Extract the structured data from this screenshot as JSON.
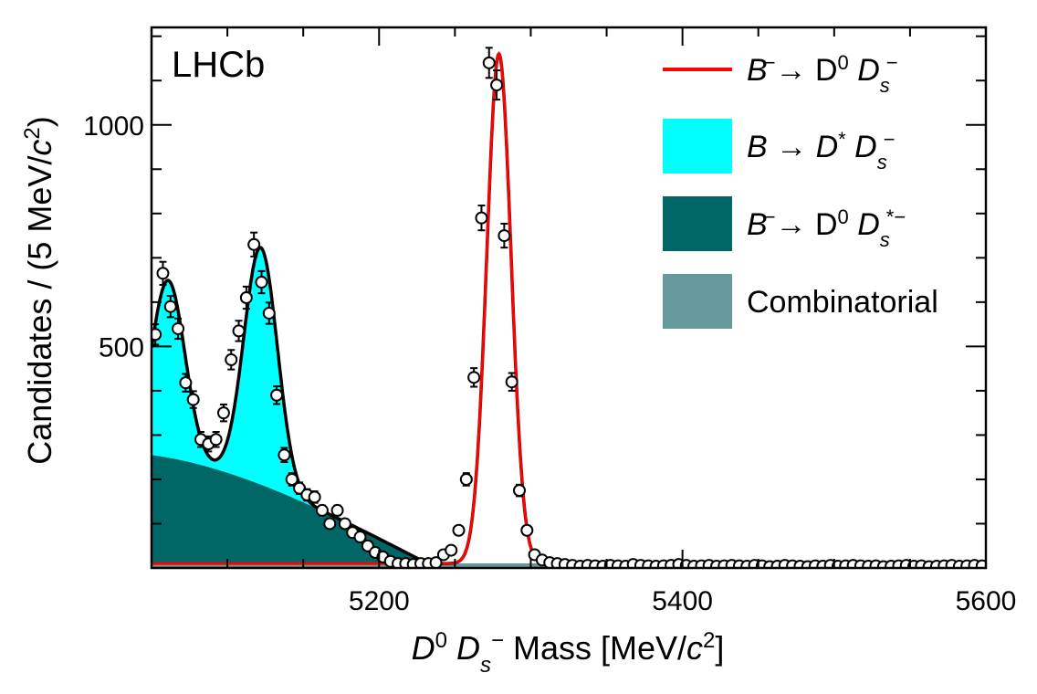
{
  "chart_data": {
    "type": "line",
    "annotation": "LHCb",
    "xlabel": {
      "pre": "D",
      "sup1": "0",
      "mid": " D",
      "sub": "s",
      "sup2": "−",
      "post": " Mass [MeV/",
      "c": "c",
      "sup3": "2",
      "end": "]"
    },
    "ylabel": {
      "pre": "Candidates / (5 MeV/",
      "c": "c",
      "sup": "2",
      "end": ")"
    },
    "xlim": [
      5050,
      5600
    ],
    "ylim": [
      0,
      1220
    ],
    "x_ticks": [
      5200,
      5400,
      5600
    ],
    "y_ticks": [
      500,
      1000
    ],
    "grid": false,
    "legend_position": "top-right",
    "legend": [
      {
        "key": "sig",
        "kind": "line",
        "color": "#ff0000",
        "parts": [
          "B",
          "−",
          "→ D",
          "0",
          " D",
          "s",
          "−"
        ]
      },
      {
        "key": "dstar",
        "kind": "fill",
        "color": "#00ffff",
        "parts": [
          "B → D",
          "*",
          " D",
          "s",
          "−"
        ]
      },
      {
        "key": "dsstar",
        "kind": "fill",
        "color": "#006666",
        "parts": [
          "B",
          "−",
          "→ D",
          "0",
          " D",
          "s",
          "*−"
        ]
      },
      {
        "key": "comb",
        "kind": "fill",
        "color": "#669999",
        "parts": [
          "Combinatorial"
        ]
      }
    ],
    "colors": {
      "total": "#000000",
      "signal": "#ff0000",
      "dstar": "#00ffff",
      "dsstar": "#006666",
      "comb": "#669999"
    },
    "data_points": {
      "x": [
        5052.5,
        5057.5,
        5062.5,
        5067.5,
        5072.5,
        5077.5,
        5082.5,
        5087.5,
        5092.5,
        5097.5,
        5102.5,
        5107.5,
        5112.5,
        5117.5,
        5122.5,
        5127.5,
        5132.5,
        5137.5,
        5142.5,
        5147.5,
        5152.5,
        5157.5,
        5162.5,
        5167.5,
        5172.5,
        5177.5,
        5182.5,
        5187.5,
        5192.5,
        5197.5,
        5202.5,
        5207.5,
        5212.5,
        5217.5,
        5222.5,
        5227.5,
        5232.5,
        5237.5,
        5242.5,
        5247.5,
        5252.5,
        5257.5,
        5262.5,
        5267.5,
        5272.5,
        5277.5,
        5282.5,
        5287.5,
        5292.5,
        5297.5,
        5302.5,
        5307.5,
        5312.5,
        5317.5,
        5322.5,
        5327.5,
        5332.5,
        5337.5,
        5342.5,
        5347.5,
        5352.5,
        5357.5,
        5362.5,
        5367.5,
        5372.5,
        5377.5,
        5382.5,
        5387.5,
        5392.5,
        5397.5,
        5402.5,
        5407.5,
        5412.5,
        5417.5,
        5422.5,
        5427.5,
        5432.5,
        5437.5,
        5442.5,
        5447.5,
        5452.5,
        5457.5,
        5462.5,
        5467.5,
        5472.5,
        5477.5,
        5482.5,
        5487.5,
        5492.5,
        5497.5,
        5502.5,
        5507.5,
        5512.5,
        5517.5,
        5522.5,
        5527.5,
        5532.5,
        5537.5,
        5542.5,
        5547.5,
        5552.5,
        5557.5,
        5562.5,
        5567.5,
        5572.5,
        5577.5,
        5582.5,
        5587.5,
        5592.5,
        5597.5
      ],
      "y": [
        527,
        665,
        590,
        540,
        418,
        380,
        290,
        280,
        290,
        350,
        470,
        535,
        610,
        730,
        645,
        575,
        390,
        255,
        200,
        180,
        165,
        160,
        130,
        100,
        130,
        100,
        80,
        70,
        50,
        35,
        25,
        15,
        10,
        10,
        8,
        10,
        10,
        12,
        30,
        40,
        85,
        200,
        430,
        790,
        1140,
        1090,
        750,
        420,
        175,
        85,
        30,
        18,
        12,
        10,
        8,
        6,
        4,
        6,
        5,
        4,
        6,
        5,
        4,
        8,
        6,
        5,
        4,
        5,
        6,
        8,
        6,
        4,
        5,
        6,
        4,
        5,
        6,
        5,
        4,
        6,
        5,
        3,
        4,
        6,
        5,
        4,
        3,
        5,
        4,
        6,
        4,
        5,
        6,
        5,
        4,
        5,
        3,
        4,
        5,
        6,
        4,
        5,
        3,
        4,
        5,
        6,
        4,
        5,
        6,
        5
      ],
      "errors": [
        23,
        26,
        24,
        23,
        20,
        19,
        17,
        17,
        17,
        19,
        22,
        23,
        25,
        27,
        25,
        24,
        20,
        16,
        14,
        13,
        13,
        13,
        11,
        10,
        11,
        10,
        9,
        8,
        7,
        6,
        5,
        4,
        3,
        3,
        3,
        3,
        3,
        3,
        5,
        6,
        9,
        14,
        21,
        28,
        34,
        33,
        27,
        20,
        13,
        9,
        5,
        4,
        3,
        3,
        3,
        2,
        2,
        2,
        2,
        2,
        2,
        2,
        2,
        3,
        2,
        2,
        2,
        2,
        2,
        3,
        2,
        2,
        2,
        2,
        2,
        2,
        2,
        2,
        2,
        2,
        2,
        2,
        2,
        2,
        2,
        2,
        2,
        2,
        2,
        2,
        2,
        2,
        2,
        2,
        2,
        2,
        2,
        2,
        2,
        2,
        2,
        2,
        2,
        2,
        2,
        2,
        2,
        2,
        2,
        2
      ]
    },
    "components": {
      "combinatorial": {
        "level": 10,
        "cutoff": 5330
      },
      "signal": {
        "mean": 5279,
        "sigma": 8,
        "peak": 1150
      },
      "dstar_peaks": [
        {
          "mean": 5061,
          "sigma": 11,
          "height": 400
        },
        {
          "mean": 5122,
          "sigma": 11,
          "height": 535
        }
      ],
      "dsstar_shape": {
        "start": 5050,
        "end": 5232,
        "height_at_start": 245
      }
    }
  }
}
